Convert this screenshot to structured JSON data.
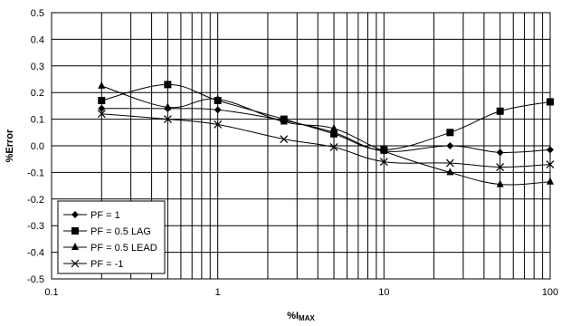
{
  "chart_data": {
    "type": "line",
    "title": "",
    "xlabel_prefix": "%I",
    "xlabel_sub": "MAX",
    "ylabel": "%Error",
    "x_scale": "log",
    "xlim": [
      0.1,
      100
    ],
    "ylim": [
      -0.5,
      0.5
    ],
    "x_ticks": [
      0.1,
      1,
      10,
      100
    ],
    "x_tick_labels": [
      "0.1",
      "1",
      "10",
      "100"
    ],
    "y_ticks": [
      -0.5,
      -0.4,
      -0.3,
      -0.2,
      -0.1,
      0.0,
      0.1,
      0.2,
      0.3,
      0.4,
      0.5
    ],
    "y_tick_labels": [
      "-0.5",
      "-0.4",
      "-0.3",
      "-0.2",
      "-0.1",
      "0.0",
      "0.1",
      "0.2",
      "0.3",
      "0.4",
      "0.5"
    ],
    "grid": true,
    "legend_position": "bottom-left",
    "series": [
      {
        "name": "PF = 1",
        "marker": "diamond",
        "x": [
          0.2,
          0.5,
          1,
          2.5,
          5,
          10,
          25,
          50,
          100
        ],
        "y": [
          0.14,
          0.14,
          0.135,
          0.095,
          0.05,
          -0.02,
          0.0,
          -0.025,
          -0.015
        ]
      },
      {
        "name": "PF = 0.5 LAG",
        "marker": "square",
        "x": [
          0.2,
          0.5,
          1,
          2.5,
          5,
          10,
          25,
          50,
          100
        ],
        "y": [
          0.17,
          0.23,
          0.17,
          0.1,
          0.045,
          -0.015,
          0.05,
          0.13,
          0.165
        ]
      },
      {
        "name": "PF = 0.5 LEAD",
        "marker": "triangle",
        "x": [
          0.2,
          0.5,
          1,
          2.5,
          5,
          10,
          25,
          50,
          100
        ],
        "y": [
          0.225,
          0.145,
          0.175,
          0.09,
          0.065,
          -0.02,
          -0.1,
          -0.145,
          -0.135
        ]
      },
      {
        "name": "PF = -1",
        "marker": "x",
        "x": [
          0.2,
          0.5,
          1,
          2.5,
          5,
          10,
          25,
          50,
          100
        ],
        "y": [
          0.12,
          0.1,
          0.08,
          0.025,
          -0.005,
          -0.06,
          -0.065,
          -0.08,
          -0.07
        ]
      }
    ]
  }
}
